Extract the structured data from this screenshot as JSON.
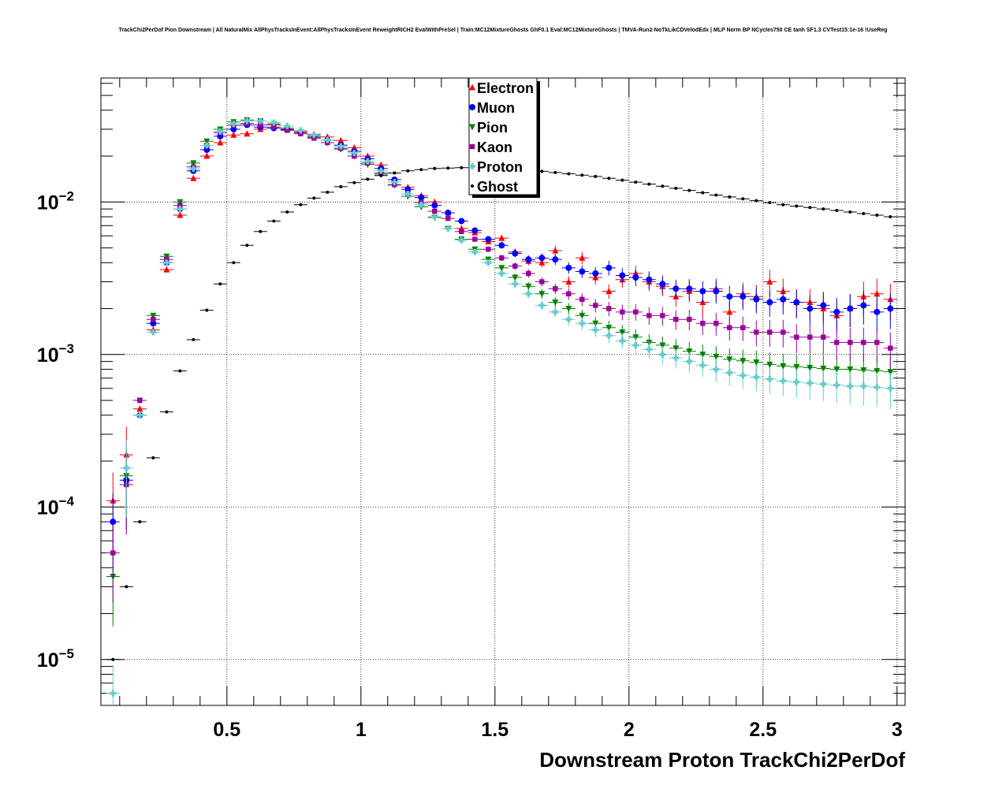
{
  "chart_data": {
    "type": "scatter",
    "title": "TrackChi2PerDof Pion Downstream | All NaturalMix AllPhysTracksInEvent:AllPhysTracksInEvent ReweightRICH2 EvalWithPreSel | Train:MC12MixtureGhosts GhF0.1 Eval:MC12MixtureGhosts | TMVA-Run2-NoTkLikCDVelodEdx | MLP Norm BP NCycles750 CE tanh SF1.3 CVTest15:1e-16 !UseReg",
    "xlabel": "Downstream Proton TrackChi2PerDof",
    "ylabel": "",
    "xlim": [
      0.03,
      3.03
    ],
    "ylim": [
      5e-06,
      0.065
    ],
    "yscale": "log",
    "grid": true,
    "legend_position": "top-center",
    "x_ticks": [
      "0.5",
      "1",
      "1.5",
      "2",
      "2.5",
      "3"
    ],
    "y_ticks": [
      {
        "base": "10",
        "exp": "−5"
      },
      {
        "base": "10",
        "exp": "−4"
      },
      {
        "base": "10",
        "exp": "−3"
      },
      {
        "base": "10",
        "exp": "−2"
      }
    ],
    "series": [
      {
        "name": "Electron",
        "color": "#ff0000",
        "marker": "triangle-up",
        "x": [
          0.075,
          0.125,
          0.175,
          0.225,
          0.275,
          0.325,
          0.375,
          0.425,
          0.475,
          0.525,
          0.575,
          0.625,
          0.675,
          0.725,
          0.775,
          0.825,
          0.875,
          0.925,
          0.975,
          1.025,
          1.075,
          1.125,
          1.175,
          1.225,
          1.275,
          1.325,
          1.375,
          1.425,
          1.475,
          1.525,
          1.575,
          1.625,
          1.675,
          1.725,
          1.775,
          1.825,
          1.875,
          1.925,
          1.975,
          2.025,
          2.075,
          2.125,
          2.175,
          2.225,
          2.275,
          2.325,
          2.375,
          2.425,
          2.475,
          2.525,
          2.575,
          2.625,
          2.675,
          2.725,
          2.775,
          2.825,
          2.875,
          2.925,
          2.975
        ],
        "y": [
          0.00011,
          0.00022,
          0.00044,
          0.00145,
          0.0036,
          0.0082,
          0.0143,
          0.02,
          0.0245,
          0.0275,
          0.028,
          0.03,
          0.032,
          0.03,
          0.029,
          0.0278,
          0.0267,
          0.0253,
          0.0227,
          0.02,
          0.0175,
          0.014,
          0.0125,
          0.011,
          0.01,
          0.0085,
          0.0067,
          0.0063,
          0.0055,
          0.0058,
          0.0047,
          0.0041,
          0.004,
          0.0048,
          0.003,
          0.0043,
          0.0032,
          0.0026,
          0.0031,
          0.0034,
          0.003,
          0.0028,
          0.0024,
          0.0026,
          0.0022,
          0.0027,
          0.0019,
          0.0025,
          0.0024,
          0.003,
          0.0026,
          0.0022,
          0.0022,
          0.002,
          0.0018,
          0.002,
          0.0024,
          0.0025,
          0.0023
        ]
      },
      {
        "name": "Muon",
        "color": "#0000ff",
        "marker": "circle",
        "x": [
          0.075,
          0.125,
          0.175,
          0.225,
          0.275,
          0.325,
          0.375,
          0.425,
          0.475,
          0.525,
          0.575,
          0.625,
          0.675,
          0.725,
          0.775,
          0.825,
          0.875,
          0.925,
          0.975,
          1.025,
          1.075,
          1.125,
          1.175,
          1.225,
          1.275,
          1.325,
          1.375,
          1.425,
          1.475,
          1.525,
          1.575,
          1.625,
          1.675,
          1.725,
          1.775,
          1.825,
          1.875,
          1.925,
          1.975,
          2.025,
          2.075,
          2.125,
          2.175,
          2.225,
          2.275,
          2.325,
          2.375,
          2.425,
          2.475,
          2.525,
          2.575,
          2.625,
          2.675,
          2.725,
          2.775,
          2.825,
          2.875,
          2.925,
          2.975
        ],
        "y": [
          8e-05,
          0.00015,
          0.0004,
          0.0016,
          0.004,
          0.009,
          0.016,
          0.022,
          0.027,
          0.03,
          0.032,
          0.031,
          0.0305,
          0.0298,
          0.0285,
          0.027,
          0.0255,
          0.0236,
          0.0215,
          0.0192,
          0.0166,
          0.014,
          0.0121,
          0.0107,
          0.0095,
          0.0085,
          0.0075,
          0.0065,
          0.0057,
          0.0052,
          0.0046,
          0.0042,
          0.0043,
          0.0042,
          0.0037,
          0.0035,
          0.0034,
          0.0037,
          0.0033,
          0.0032,
          0.0031,
          0.0029,
          0.0027,
          0.0027,
          0.0026,
          0.0026,
          0.0024,
          0.0024,
          0.0023,
          0.0022,
          0.0023,
          0.0022,
          0.002,
          0.0021,
          0.0019,
          0.002,
          0.0021,
          0.0019,
          0.002
        ]
      },
      {
        "name": "Pion",
        "color": "#008000",
        "marker": "triangle-down",
        "x": [
          0.075,
          0.125,
          0.175,
          0.225,
          0.275,
          0.325,
          0.375,
          0.425,
          0.475,
          0.525,
          0.575,
          0.625,
          0.675,
          0.725,
          0.775,
          0.825,
          0.875,
          0.925,
          0.975,
          1.025,
          1.075,
          1.125,
          1.175,
          1.225,
          1.275,
          1.325,
          1.375,
          1.425,
          1.475,
          1.525,
          1.575,
          1.625,
          1.675,
          1.725,
          1.775,
          1.825,
          1.875,
          1.925,
          1.975,
          2.025,
          2.075,
          2.125,
          2.175,
          2.225,
          2.275,
          2.325,
          2.375,
          2.425,
          2.475,
          2.525,
          2.575,
          2.625,
          2.675,
          2.725,
          2.775,
          2.825,
          2.875,
          2.925,
          2.975
        ],
        "y": [
          3.5e-05,
          0.00016,
          0.0005,
          0.0018,
          0.0044,
          0.01,
          0.018,
          0.025,
          0.03,
          0.0335,
          0.0345,
          0.034,
          0.0325,
          0.0305,
          0.0285,
          0.0265,
          0.0245,
          0.0222,
          0.02,
          0.0176,
          0.0152,
          0.0129,
          0.0109,
          0.0093,
          0.0079,
          0.0067,
          0.0057,
          0.0049,
          0.0042,
          0.0037,
          0.0032,
          0.0028,
          0.0025,
          0.0022,
          0.002,
          0.0018,
          0.0016,
          0.0015,
          0.0014,
          0.0013,
          0.0012,
          0.00115,
          0.0011,
          0.00105,
          0.001,
          0.00097,
          0.00093,
          0.00091,
          0.00089,
          0.00086,
          0.00084,
          0.00083,
          0.00082,
          0.00081,
          0.0008,
          0.0008,
          0.00079,
          0.00078,
          0.00077
        ]
      },
      {
        "name": "Kaon",
        "color": "#990099",
        "marker": "square",
        "x": [
          0.075,
          0.125,
          0.175,
          0.225,
          0.275,
          0.325,
          0.375,
          0.425,
          0.475,
          0.525,
          0.575,
          0.625,
          0.675,
          0.725,
          0.775,
          0.825,
          0.875,
          0.925,
          0.975,
          1.025,
          1.075,
          1.125,
          1.175,
          1.225,
          1.275,
          1.325,
          1.375,
          1.425,
          1.475,
          1.525,
          1.575,
          1.625,
          1.675,
          1.725,
          1.775,
          1.825,
          1.875,
          1.925,
          1.975,
          2.025,
          2.075,
          2.125,
          2.175,
          2.225,
          2.275,
          2.325,
          2.375,
          2.425,
          2.475,
          2.525,
          2.575,
          2.625,
          2.675,
          2.725,
          2.775,
          2.825,
          2.875,
          2.925,
          2.975
        ],
        "y": [
          5e-05,
          0.00014,
          0.0005,
          0.0017,
          0.0042,
          0.0095,
          0.017,
          0.0235,
          0.0285,
          0.0318,
          0.0328,
          0.032,
          0.031,
          0.0295,
          0.028,
          0.0262,
          0.0245,
          0.0225,
          0.02,
          0.018,
          0.0155,
          0.013,
          0.0113,
          0.0099,
          0.0087,
          0.0078,
          0.0064,
          0.0057,
          0.0049,
          0.0043,
          0.0038,
          0.0034,
          0.003,
          0.0027,
          0.0025,
          0.0023,
          0.0021,
          0.002,
          0.0019,
          0.0019,
          0.0018,
          0.0018,
          0.0017,
          0.0017,
          0.0016,
          0.0016,
          0.0015,
          0.0015,
          0.0014,
          0.0014,
          0.0014,
          0.0013,
          0.0013,
          0.0013,
          0.0012,
          0.0012,
          0.0012,
          0.0012,
          0.0011
        ]
      },
      {
        "name": "Proton",
        "color": "#66cccc",
        "marker": "cross",
        "x": [
          0.075,
          0.125,
          0.175,
          0.225,
          0.275,
          0.325,
          0.375,
          0.425,
          0.475,
          0.525,
          0.575,
          0.625,
          0.675,
          0.725,
          0.775,
          0.825,
          0.875,
          0.925,
          0.975,
          1.025,
          1.075,
          1.125,
          1.175,
          1.225,
          1.275,
          1.325,
          1.375,
          1.425,
          1.475,
          1.525,
          1.575,
          1.625,
          1.675,
          1.725,
          1.775,
          1.825,
          1.875,
          1.925,
          1.975,
          2.025,
          2.075,
          2.125,
          2.175,
          2.225,
          2.275,
          2.325,
          2.375,
          2.425,
          2.475,
          2.525,
          2.575,
          2.625,
          2.675,
          2.725,
          2.775,
          2.825,
          2.875,
          2.925,
          2.975
        ],
        "y": [
          6e-06,
          0.00018,
          0.0004,
          0.0014,
          0.004,
          0.009,
          0.0165,
          0.0235,
          0.029,
          0.0325,
          0.034,
          0.034,
          0.0332,
          0.0315,
          0.0295,
          0.0275,
          0.0255,
          0.0232,
          0.021,
          0.0185,
          0.016,
          0.0135,
          0.0113,
          0.0096,
          0.008,
          0.0067,
          0.0056,
          0.0047,
          0.004,
          0.0034,
          0.0029,
          0.0025,
          0.0021,
          0.0019,
          0.0017,
          0.0016,
          0.00145,
          0.00133,
          0.00123,
          0.00115,
          0.00108,
          0.001,
          0.00095,
          0.0009,
          0.00085,
          0.0008,
          0.00076,
          0.00073,
          0.00071,
          0.00069,
          0.00067,
          0.00066,
          0.00065,
          0.00064,
          0.00063,
          0.00062,
          0.00062,
          0.00061,
          0.0006
        ]
      },
      {
        "name": "Ghost",
        "color": "#000000",
        "marker": "dot",
        "x": [
          0.075,
          0.125,
          0.175,
          0.225,
          0.275,
          0.325,
          0.375,
          0.425,
          0.475,
          0.525,
          0.575,
          0.625,
          0.675,
          0.725,
          0.775,
          0.825,
          0.875,
          0.925,
          0.975,
          1.025,
          1.075,
          1.125,
          1.175,
          1.225,
          1.275,
          1.325,
          1.375,
          1.425,
          1.475,
          1.525,
          1.575,
          1.625,
          1.675,
          1.725,
          1.775,
          1.825,
          1.875,
          1.925,
          1.975,
          2.025,
          2.075,
          2.125,
          2.175,
          2.225,
          2.275,
          2.325,
          2.375,
          2.425,
          2.475,
          2.525,
          2.575,
          2.625,
          2.675,
          2.725,
          2.775,
          2.825,
          2.875,
          2.925,
          2.975
        ],
        "y": [
          1e-05,
          3e-05,
          8e-05,
          0.00021,
          0.00042,
          0.00078,
          0.00125,
          0.00195,
          0.0029,
          0.004,
          0.0052,
          0.0064,
          0.0075,
          0.0086,
          0.0096,
          0.0106,
          0.0116,
          0.0126,
          0.0134,
          0.0141,
          0.0149,
          0.0155,
          0.016,
          0.0163,
          0.0166,
          0.0167,
          0.0168,
          0.0168,
          0.0167,
          0.0166,
          0.0164,
          0.0162,
          0.0159,
          0.0156,
          0.0153,
          0.015,
          0.0147,
          0.0143,
          0.0139,
          0.0135,
          0.0131,
          0.0127,
          0.0123,
          0.0119,
          0.0115,
          0.0111,
          0.0108,
          0.0105,
          0.0102,
          0.0099,
          0.0096,
          0.0094,
          0.0092,
          0.009,
          0.0088,
          0.0086,
          0.0084,
          0.0082,
          0.008
        ]
      }
    ]
  }
}
